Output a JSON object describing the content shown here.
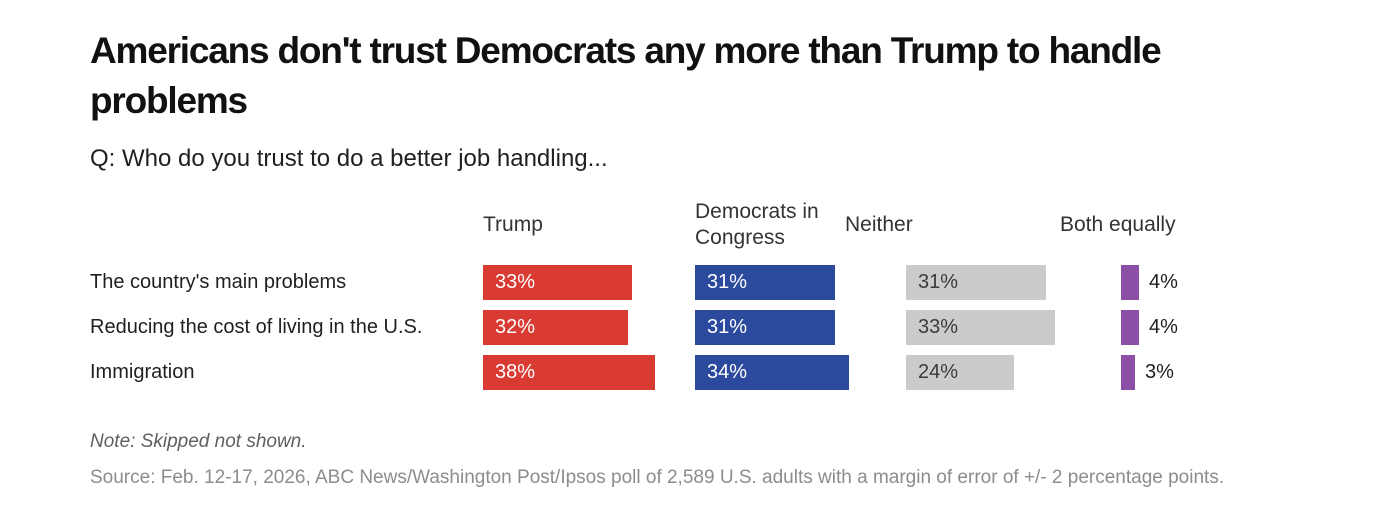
{
  "header": {
    "title": "Americans don't trust Democrats any more than Trump to handle problems",
    "question": "Q: Who do you trust to do a better job handling..."
  },
  "chart_data": {
    "type": "bar",
    "orientation": "horizontal",
    "title": "Americans don't trust Democrats any more than Trump to handle problems",
    "subtitle": "Q: Who do you trust to do a better job handling...",
    "categories": [
      "The country's main problems",
      "Reducing the cost of living in the U.S.",
      "Immigration"
    ],
    "series": [
      {
        "name": "Trump",
        "color": "#d93a32",
        "values": [
          33,
          32,
          38
        ]
      },
      {
        "name": "Democrats in Congress",
        "color": "#2b4a9d",
        "values": [
          31,
          31,
          34
        ]
      },
      {
        "name": "Neither",
        "color": "#cbcbcb",
        "values": [
          31,
          33,
          24
        ]
      },
      {
        "name": "Both equally",
        "color": "#8b4fa6",
        "values": [
          4,
          4,
          3
        ]
      }
    ],
    "value_suffix": "%",
    "xlim": [
      0,
      47
    ],
    "grid": false,
    "legend_position": "column-headers",
    "value_labels": "inside-left (outside-right for Both equally)"
  },
  "footer": {
    "note": "Note: Skipped not shown.",
    "source": "Source: Feb. 12-17, 2026, ABC News/Washington Post/Ipsos poll of 2,589 U.S. adults with a margin of error of +/- 2 percentage points."
  }
}
